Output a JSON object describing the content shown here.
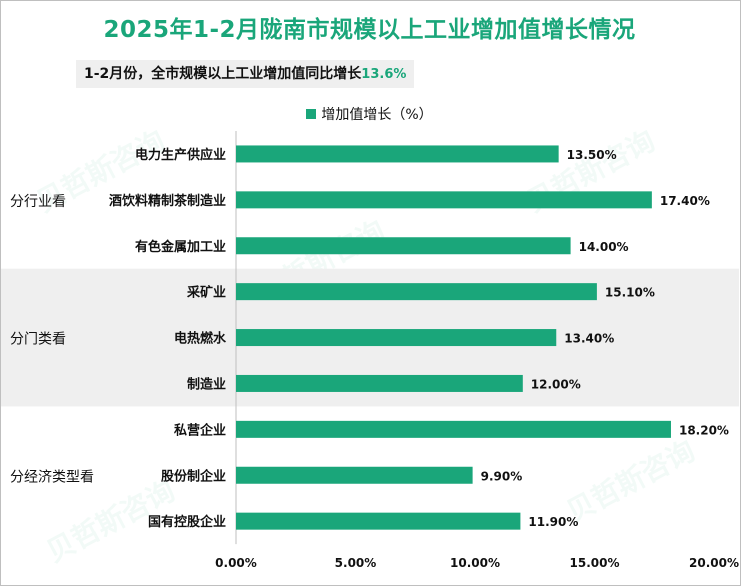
{
  "title": "2025年1-2月陇南市规模以上工业增加值增长情况",
  "subtitle": {
    "prefix": "1-2月份，全市规模以上工业增加值同比增长",
    "value": "13.6%"
  },
  "legend_label": "增加值增长（%）",
  "colors": {
    "bar": "#1aa67a",
    "band": "#efefef",
    "title": "#1aa67a"
  },
  "chart_data": {
    "type": "bar",
    "orientation": "horizontal",
    "categories": [
      "电力生产供应业",
      "酒饮料精制茶制造业",
      "有色金属加工业",
      "采矿业",
      "电热燃水",
      "制造业",
      "私营企业",
      "股份制企业",
      "国有控股企业"
    ],
    "values": [
      13.5,
      17.4,
      14.0,
      15.1,
      13.4,
      12.0,
      18.2,
      9.9,
      11.9
    ],
    "value_labels": [
      "13.50%",
      "17.40%",
      "14.00%",
      "15.10%",
      "13.40%",
      "12.00%",
      "18.20%",
      "9.90%",
      "11.90%"
    ],
    "groups": [
      {
        "name": "分行业看",
        "start": 0,
        "end": 2
      },
      {
        "name": "分门类看",
        "start": 3,
        "end": 5
      },
      {
        "name": "分经济类型看",
        "start": 6,
        "end": 8
      }
    ],
    "xlim": [
      0,
      20
    ],
    "xticks": [
      0,
      5,
      10,
      15,
      20
    ],
    "xtick_labels": [
      "0.00%",
      "5.00%",
      "10.00%",
      "15.00%",
      "20.00%"
    ],
    "legend": "top",
    "grid": false
  }
}
